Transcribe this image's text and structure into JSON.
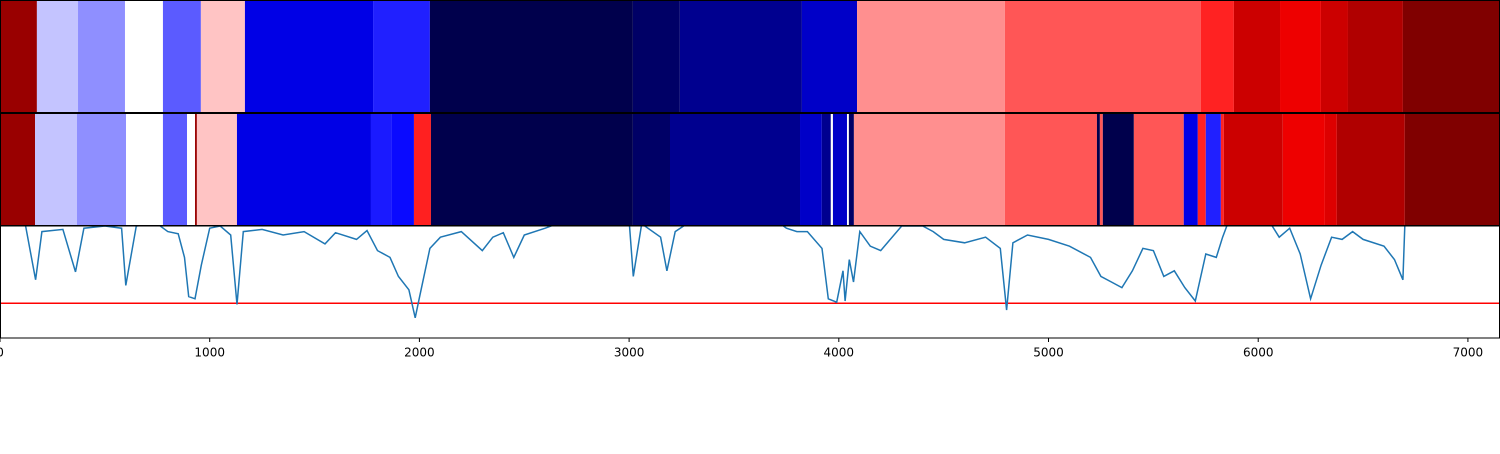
{
  "chart_data": {
    "type": "segmentation",
    "xlim": [
      0,
      7153
    ],
    "xticks": [
      0,
      1000,
      2000,
      3000,
      4000,
      5000,
      6000,
      7000
    ],
    "tracks": [
      {
        "segments": [
          {
            "start": 0,
            "end": 176,
            "color": "#990000"
          },
          {
            "start": 176,
            "end": 372,
            "color": "#c4c4ff"
          },
          {
            "start": 372,
            "end": 596,
            "color": "#8f8fff"
          },
          {
            "start": 596,
            "end": 777,
            "color": "#ffffff"
          },
          {
            "start": 777,
            "end": 958,
            "color": "#5b5bff"
          },
          {
            "start": 958,
            "end": 1168,
            "color": "#ffc4c4"
          },
          {
            "start": 1168,
            "end": 1779,
            "color": "#0000e6"
          },
          {
            "start": 1779,
            "end": 2050,
            "color": "#2020ff"
          },
          {
            "start": 2050,
            "end": 3018,
            "color": "#00004c"
          },
          {
            "start": 3018,
            "end": 3242,
            "color": "#000066"
          },
          {
            "start": 3242,
            "end": 3824,
            "color": "#00008f"
          },
          {
            "start": 3824,
            "end": 4087,
            "color": "#0000c8"
          },
          {
            "start": 4087,
            "end": 4792,
            "color": "#ff8f8f"
          },
          {
            "start": 4792,
            "end": 5727,
            "color": "#ff5656"
          },
          {
            "start": 5727,
            "end": 5884,
            "color": "#ff2222"
          },
          {
            "start": 5884,
            "end": 6104,
            "color": "#cc0000"
          },
          {
            "start": 6104,
            "end": 6299,
            "color": "#ee0000"
          },
          {
            "start": 6299,
            "end": 6428,
            "color": "#cc0000"
          },
          {
            "start": 6428,
            "end": 6690,
            "color": "#b00000"
          },
          {
            "start": 6690,
            "end": 7153,
            "color": "#800000"
          }
        ]
      },
      {
        "segments": [
          {
            "start": 0,
            "end": 167,
            "color": "#990000"
          },
          {
            "start": 167,
            "end": 367,
            "color": "#c4c4ff"
          },
          {
            "start": 367,
            "end": 601,
            "color": "#8f8fff"
          },
          {
            "start": 601,
            "end": 777,
            "color": "#ffffff"
          },
          {
            "start": 777,
            "end": 892,
            "color": "#5b5bff"
          },
          {
            "start": 892,
            "end": 930,
            "color": "#ffffff"
          },
          {
            "start": 930,
            "end": 939,
            "color": "#990000"
          },
          {
            "start": 939,
            "end": 1130,
            "color": "#ffc4c4"
          },
          {
            "start": 1130,
            "end": 1769,
            "color": "#0000e6"
          },
          {
            "start": 1769,
            "end": 1869,
            "color": "#1a1aff"
          },
          {
            "start": 1869,
            "end": 1974,
            "color": "#0a0aff"
          },
          {
            "start": 1974,
            "end": 2055,
            "color": "#ff2020"
          },
          {
            "start": 2055,
            "end": 3018,
            "color": "#00004c"
          },
          {
            "start": 3018,
            "end": 3195,
            "color": "#000066"
          },
          {
            "start": 3195,
            "end": 3815,
            "color": "#00008f"
          },
          {
            "start": 3815,
            "end": 3919,
            "color": "#0000c8"
          },
          {
            "start": 3919,
            "end": 3962,
            "color": "#00008f"
          },
          {
            "start": 3962,
            "end": 3972,
            "color": "#ffffff"
          },
          {
            "start": 3972,
            "end": 4039,
            "color": "#0000c8"
          },
          {
            "start": 4039,
            "end": 4048,
            "color": "#ffffff"
          },
          {
            "start": 4048,
            "end": 4072,
            "color": "#000066"
          },
          {
            "start": 4072,
            "end": 4792,
            "color": "#ff8f8f"
          },
          {
            "start": 4792,
            "end": 5231,
            "color": "#ff5656"
          },
          {
            "start": 5231,
            "end": 5245,
            "color": "#00004c"
          },
          {
            "start": 5245,
            "end": 5259,
            "color": "#ff5656"
          },
          {
            "start": 5259,
            "end": 5407,
            "color": "#00004c"
          },
          {
            "start": 5407,
            "end": 5645,
            "color": "#ff5656"
          },
          {
            "start": 5645,
            "end": 5712,
            "color": "#0000e6"
          },
          {
            "start": 5712,
            "end": 5750,
            "color": "#ff2222"
          },
          {
            "start": 5750,
            "end": 5822,
            "color": "#2020ff"
          },
          {
            "start": 5822,
            "end": 5836,
            "color": "#ff2222"
          },
          {
            "start": 5836,
            "end": 6117,
            "color": "#cc0000"
          },
          {
            "start": 6117,
            "end": 6318,
            "color": "#ee0000"
          },
          {
            "start": 6318,
            "end": 6375,
            "color": "#dd0000"
          },
          {
            "start": 6375,
            "end": 6699,
            "color": "#b00000"
          },
          {
            "start": 6699,
            "end": 7153,
            "color": "#800000"
          }
        ]
      }
    ],
    "confidence": {
      "color": "#1f77b4",
      "ylim": [
        0,
        1
      ],
      "threshold": 0.31,
      "threshold_color": "#ff0000",
      "x": [
        0,
        120,
        170,
        200,
        300,
        360,
        400,
        500,
        580,
        600,
        650,
        750,
        800,
        850,
        880,
        900,
        930,
        960,
        1000,
        1050,
        1100,
        1130,
        1160,
        1250,
        1350,
        1450,
        1550,
        1600,
        1700,
        1750,
        1800,
        1860,
        1900,
        1950,
        1980,
        2000,
        2050,
        2100,
        2200,
        2300,
        2350,
        2400,
        2450,
        2500,
        2600,
        2700,
        3000,
        3020,
        3060,
        3150,
        3180,
        3220,
        3300,
        3700,
        3750,
        3800,
        3850,
        3920,
        3950,
        3990,
        4020,
        4030,
        4050,
        4070,
        4100,
        4150,
        4200,
        4300,
        4400,
        4450,
        4500,
        4600,
        4700,
        4770,
        4800,
        4830,
        4900,
        5000,
        5100,
        5200,
        5250,
        5300,
        5350,
        5400,
        5450,
        5500,
        5550,
        5600,
        5650,
        5700,
        5750,
        5800,
        5830,
        5860,
        6050,
        6100,
        6150,
        6200,
        6250,
        6300,
        6350,
        6400,
        6450,
        6500,
        6600,
        6650,
        6690,
        6700
      ],
      "values": [
        1.05,
        1.02,
        0.52,
        0.95,
        0.97,
        0.59,
        0.98,
        1.0,
        0.98,
        0.47,
        1.0,
        1.02,
        0.95,
        0.93,
        0.72,
        0.37,
        0.35,
        0.65,
        0.98,
        1.0,
        0.92,
        0.3,
        0.95,
        0.97,
        0.92,
        0.95,
        0.84,
        0.94,
        0.88,
        0.96,
        0.78,
        0.72,
        0.55,
        0.43,
        0.18,
        0.36,
        0.8,
        0.9,
        0.95,
        0.78,
        0.9,
        0.94,
        0.72,
        0.92,
        0.98,
        1.05,
        1.05,
        0.55,
        1.02,
        0.9,
        0.6,
        0.95,
        1.05,
        1.05,
        0.98,
        0.95,
        0.95,
        0.8,
        0.35,
        0.32,
        0.6,
        0.33,
        0.7,
        0.5,
        0.95,
        0.82,
        0.78,
        1.0,
        1.0,
        0.95,
        0.88,
        0.85,
        0.9,
        0.8,
        0.25,
        0.85,
        0.92,
        0.88,
        0.82,
        0.72,
        0.55,
        0.5,
        0.45,
        0.6,
        0.8,
        0.78,
        0.55,
        0.6,
        0.45,
        0.33,
        0.75,
        0.72,
        0.9,
        1.05,
        1.05,
        0.9,
        0.98,
        0.75,
        0.35,
        0.65,
        0.9,
        0.88,
        0.95,
        0.88,
        0.82,
        0.7,
        0.52,
        1.05
      ]
    }
  }
}
